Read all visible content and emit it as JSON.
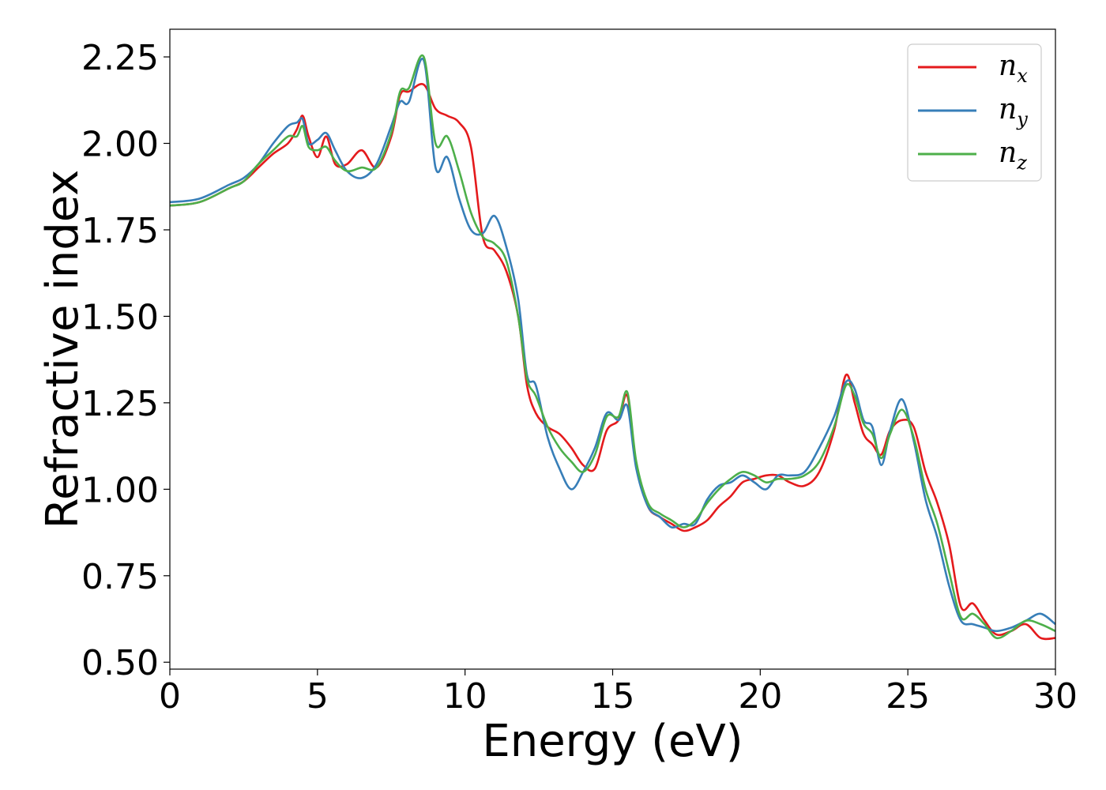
{
  "chart_data": {
    "type": "line",
    "xlabel": "Energy (eV)",
    "ylabel": "Refractive index",
    "xlim": [
      0,
      30
    ],
    "ylim": [
      0.48,
      2.33
    ],
    "xticks": [
      0,
      5,
      10,
      15,
      20,
      25,
      30
    ],
    "xtick_labels": [
      "0",
      "5",
      "10",
      "15",
      "20",
      "25",
      "30"
    ],
    "yticks": [
      0.5,
      0.75,
      1.0,
      1.25,
      1.5,
      1.75,
      2.0,
      2.25
    ],
    "ytick_labels": [
      "0.50",
      "0.75",
      "1.00",
      "1.25",
      "1.50",
      "1.75",
      "2.00",
      "2.25"
    ],
    "grid": false,
    "legend_position": "top-right",
    "series": [
      {
        "name": "n",
        "subscript": "x",
        "color": "#e41a1c",
        "x": [
          0,
          1,
          2,
          2.5,
          3,
          3.5,
          4,
          4.3,
          4.5,
          4.7,
          5.0,
          5.3,
          5.6,
          6.0,
          6.5,
          7.0,
          7.5,
          7.8,
          8.1,
          8.6,
          9.0,
          9.4,
          9.8,
          10.2,
          10.6,
          11.0,
          11.4,
          11.8,
          12.1,
          12.4,
          12.8,
          13.2,
          13.6,
          14.0,
          14.4,
          14.8,
          15.2,
          15.5,
          15.8,
          16.2,
          16.6,
          17.0,
          17.4,
          17.8,
          18.2,
          18.6,
          19.0,
          19.4,
          19.8,
          20.2,
          20.6,
          21.0,
          21.5,
          22.0,
          22.5,
          22.9,
          23.2,
          23.5,
          23.8,
          24.1,
          24.4,
          24.8,
          25.2,
          25.6,
          26.0,
          26.4,
          26.8,
          27.2,
          27.6,
          28.0,
          28.5,
          29.0,
          29.5,
          30.0
        ],
        "y": [
          1.82,
          1.83,
          1.87,
          1.89,
          1.93,
          1.97,
          2.0,
          2.04,
          2.08,
          2.02,
          1.96,
          2.02,
          1.94,
          1.94,
          1.98,
          1.93,
          2.02,
          2.14,
          2.15,
          2.17,
          2.1,
          2.08,
          2.06,
          1.99,
          1.73,
          1.69,
          1.63,
          1.5,
          1.3,
          1.22,
          1.18,
          1.16,
          1.12,
          1.07,
          1.06,
          1.17,
          1.2,
          1.27,
          1.07,
          0.95,
          0.92,
          0.9,
          0.88,
          0.89,
          0.91,
          0.95,
          0.98,
          1.02,
          1.03,
          1.04,
          1.04,
          1.02,
          1.01,
          1.05,
          1.17,
          1.33,
          1.25,
          1.16,
          1.13,
          1.1,
          1.17,
          1.2,
          1.18,
          1.05,
          0.96,
          0.84,
          0.66,
          0.67,
          0.62,
          0.58,
          0.59,
          0.61,
          0.57,
          0.57
        ]
      },
      {
        "name": "n",
        "subscript": "y",
        "color": "#377eb8",
        "x": [
          0,
          1,
          2,
          2.5,
          3,
          3.5,
          4,
          4.3,
          4.5,
          4.7,
          5.0,
          5.3,
          5.6,
          6.0,
          6.5,
          7.0,
          7.5,
          7.8,
          8.1,
          8.6,
          9.0,
          9.4,
          9.8,
          10.2,
          10.6,
          11.0,
          11.4,
          11.8,
          12.1,
          12.4,
          12.8,
          13.2,
          13.6,
          14.0,
          14.4,
          14.8,
          15.2,
          15.5,
          15.8,
          16.2,
          16.6,
          17.0,
          17.4,
          17.8,
          18.2,
          18.6,
          19.0,
          19.4,
          19.8,
          20.2,
          20.6,
          21.0,
          21.5,
          22.0,
          22.5,
          22.9,
          23.2,
          23.5,
          23.8,
          24.1,
          24.4,
          24.8,
          25.2,
          25.6,
          26.0,
          26.4,
          26.8,
          27.2,
          27.6,
          28.0,
          28.5,
          29.0,
          29.5,
          30.0
        ],
        "y": [
          1.83,
          1.84,
          1.88,
          1.9,
          1.94,
          2.0,
          2.05,
          2.06,
          2.07,
          2.0,
          2.01,
          2.03,
          1.98,
          1.92,
          1.9,
          1.94,
          2.05,
          2.12,
          2.12,
          2.24,
          1.93,
          1.96,
          1.84,
          1.75,
          1.74,
          1.79,
          1.7,
          1.55,
          1.33,
          1.3,
          1.15,
          1.06,
          1.0,
          1.05,
          1.12,
          1.22,
          1.2,
          1.24,
          1.06,
          0.95,
          0.92,
          0.89,
          0.9,
          0.9,
          0.97,
          1.01,
          1.02,
          1.04,
          1.02,
          1.0,
          1.04,
          1.04,
          1.05,
          1.12,
          1.21,
          1.31,
          1.29,
          1.2,
          1.18,
          1.07,
          1.17,
          1.26,
          1.14,
          0.97,
          0.86,
          0.72,
          0.62,
          0.61,
          0.6,
          0.59,
          0.6,
          0.62,
          0.64,
          0.61
        ]
      },
      {
        "name": "n",
        "subscript": "z",
        "color": "#4daf4a",
        "x": [
          0,
          1,
          2,
          2.5,
          3,
          3.5,
          4,
          4.3,
          4.5,
          4.7,
          5.0,
          5.3,
          5.6,
          6.0,
          6.5,
          7.0,
          7.5,
          7.8,
          8.1,
          8.6,
          9.0,
          9.4,
          9.8,
          10.2,
          10.6,
          11.0,
          11.4,
          11.8,
          12.1,
          12.4,
          12.8,
          13.2,
          13.6,
          14.0,
          14.4,
          14.8,
          15.2,
          15.5,
          15.8,
          16.2,
          16.6,
          17.0,
          17.4,
          17.8,
          18.2,
          18.6,
          19.0,
          19.4,
          19.8,
          20.2,
          20.6,
          21.0,
          21.5,
          22.0,
          22.5,
          22.9,
          23.2,
          23.5,
          23.8,
          24.1,
          24.4,
          24.8,
          25.2,
          25.6,
          26.0,
          26.4,
          26.8,
          27.2,
          27.6,
          28.0,
          28.5,
          29.0,
          29.5,
          30.0
        ],
        "y": [
          1.82,
          1.83,
          1.87,
          1.89,
          1.94,
          1.98,
          2.02,
          2.02,
          2.05,
          1.99,
          1.98,
          1.99,
          1.95,
          1.92,
          1.93,
          1.93,
          2.03,
          2.15,
          2.16,
          2.25,
          2.0,
          2.02,
          1.92,
          1.8,
          1.73,
          1.71,
          1.66,
          1.5,
          1.32,
          1.27,
          1.18,
          1.12,
          1.08,
          1.05,
          1.1,
          1.21,
          1.21,
          1.28,
          1.08,
          0.96,
          0.93,
          0.91,
          0.89,
          0.91,
          0.96,
          1.0,
          1.03,
          1.05,
          1.04,
          1.02,
          1.03,
          1.03,
          1.04,
          1.08,
          1.18,
          1.3,
          1.27,
          1.19,
          1.16,
          1.09,
          1.16,
          1.23,
          1.15,
          1.0,
          0.9,
          0.76,
          0.63,
          0.64,
          0.61,
          0.57,
          0.59,
          0.62,
          0.61,
          0.59
        ]
      }
    ]
  }
}
